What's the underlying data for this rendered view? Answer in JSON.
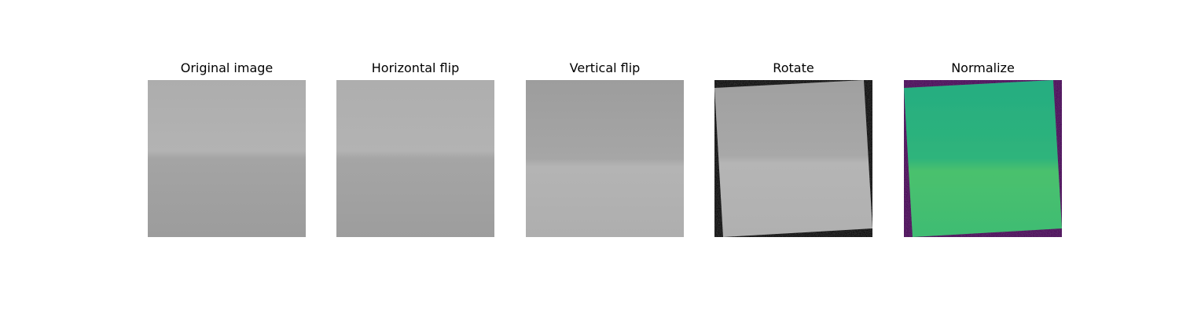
{
  "panels": [
    {
      "title": "Original image"
    },
    {
      "title": "Horizontal flip"
    },
    {
      "title": "Vertical flip"
    },
    {
      "title": "Rotate"
    },
    {
      "title": "Normalize"
    }
  ],
  "colors": {
    "background": "#ffffff",
    "gray_light": "#b1b1b1",
    "gray_dark": "#9d9d9d",
    "rotate_fill": "#000000",
    "normalize_fill": "#440154",
    "normalize_top": "#27b37e",
    "normalize_bottom": "#48c16e"
  }
}
